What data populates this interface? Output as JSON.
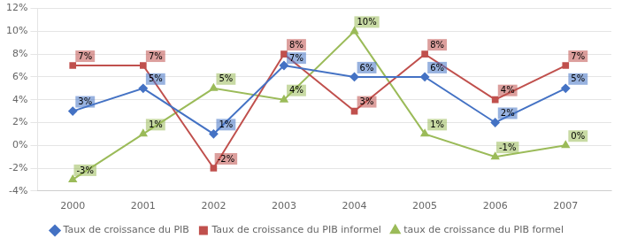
{
  "chart_data": {
    "type": "line",
    "x": [
      2000,
      2001,
      2002,
      2003,
      2004,
      2005,
      2006,
      2007
    ],
    "xlim": [
      1999.5,
      2007.65
    ],
    "xticks": [
      2000,
      2001,
      2002,
      2003,
      2004,
      2005,
      2006,
      2007
    ],
    "ylim": [
      -4,
      12
    ],
    "yticks": [
      {
        "value": -4,
        "label": "-4%"
      },
      {
        "value": -2,
        "label": "-2%"
      },
      {
        "value": 0,
        "label": "0%"
      },
      {
        "value": 2,
        "label": "2%"
      },
      {
        "value": 4,
        "label": "4%"
      },
      {
        "value": 6,
        "label": "6%"
      },
      {
        "value": 8,
        "label": "8%"
      },
      {
        "value": 10,
        "label": "10%"
      },
      {
        "value": 12,
        "label": "12%"
      }
    ],
    "grid": "y",
    "legend": "bottom",
    "data_labels": true,
    "series": [
      {
        "name": "Taux de croissance du PIB",
        "color": "#4472C4",
        "marker": "diamond",
        "values": [
          3,
          5,
          1,
          7,
          6,
          6,
          2,
          5
        ],
        "value_labels": [
          "3%",
          "5%",
          "1%",
          "7%",
          "6%",
          "6%",
          "2%",
          "5%"
        ]
      },
      {
        "name": "Taux de croissance du PIB informel",
        "color": "#C0504D",
        "marker": "square",
        "values": [
          7,
          7,
          -2,
          8,
          3,
          8,
          4,
          7
        ],
        "value_labels": [
          "7%",
          "7%",
          "-2%",
          "8%",
          "3%",
          "8%",
          "4%",
          "7%"
        ]
      },
      {
        "name": "taux de croissance du PIB formel",
        "color": "#9BBB59",
        "marker": "triangle",
        "values": [
          -3,
          1,
          5,
          4,
          10,
          1,
          -1,
          0
        ],
        "value_labels": [
          "-3%",
          "1%",
          "5%",
          "4%",
          "10%",
          "1%",
          "-1%",
          "0%"
        ]
      }
    ]
  }
}
